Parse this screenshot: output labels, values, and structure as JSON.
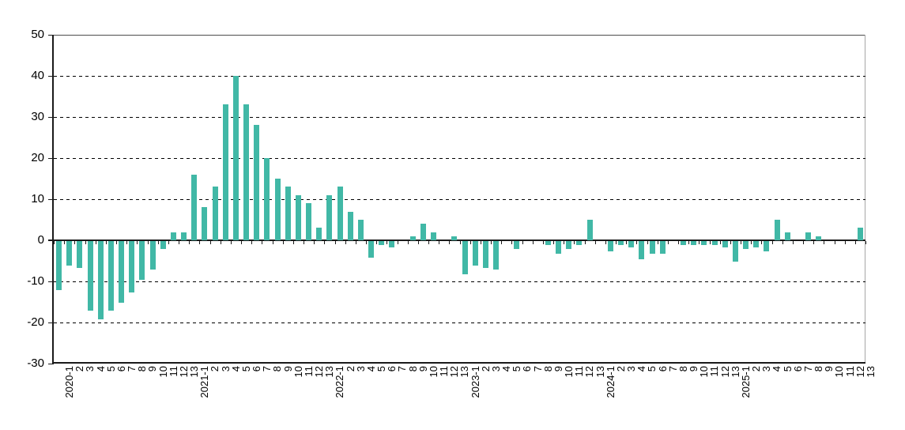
{
  "chart_data": {
    "type": "bar",
    "title": "",
    "xlabel": "",
    "ylabel": "",
    "legend": "none",
    "grid": "horizontal-dashed",
    "ylim": [
      -30,
      50
    ],
    "yticks": [
      50,
      40,
      30,
      20,
      10,
      0,
      -10,
      -20,
      -30
    ],
    "categories": [
      "2020-1",
      "2",
      "3",
      "4",
      "5",
      "6",
      "7",
      "8",
      "9",
      "10",
      "11",
      "12",
      "13",
      "2021-1",
      "2",
      "3",
      "4",
      "5",
      "6",
      "7",
      "8",
      "9",
      "10",
      "11",
      "12",
      "13",
      "2022-1",
      "2",
      "3",
      "4",
      "5",
      "6",
      "7",
      "8",
      "9",
      "10",
      "11",
      "12",
      "13",
      "2023-1",
      "2",
      "3",
      "4",
      "5",
      "6",
      "7",
      "8",
      "9",
      "10",
      "11",
      "12",
      "13",
      "2024-1",
      "2",
      "3",
      "4",
      "5",
      "6",
      "7",
      "8",
      "9",
      "10",
      "11",
      "12",
      "13",
      "2025-1",
      "2",
      "3",
      "4",
      "5",
      "6",
      "7",
      "8",
      "9",
      "10",
      "11",
      "12",
      "13"
    ],
    "values": [
      -12,
      -6,
      -6.5,
      -17,
      -19,
      -17,
      -15,
      -12.5,
      -9.5,
      -7,
      -2,
      2,
      2,
      16,
      8,
      13,
      33,
      40,
      33,
      28,
      20,
      15,
      13,
      11,
      9,
      3,
      11,
      13,
      7,
      5,
      -4,
      -1,
      -1.5,
      0,
      1,
      4,
      2,
      0,
      1,
      -8,
      -6,
      -6.5,
      -7,
      0,
      -2,
      0,
      0,
      -1,
      -3,
      -2,
      -1,
      5,
      0,
      -2.5,
      -1,
      -1.5,
      -4.5,
      -3,
      -3,
      0,
      -1,
      -1,
      -1,
      -1,
      -1.5,
      -5,
      -2,
      -1.5,
      -2.5,
      5,
      2,
      0,
      2,
      1,
      0,
      0,
      0,
      3
    ],
    "colors": {
      "bar": "#41b8a6",
      "axis": "#1a1a1a",
      "grid": "#000000",
      "border_right": "#a6a6a6",
      "border_top": "#4d4d4d",
      "label": "#000000",
      "background": "#ffffff"
    }
  }
}
